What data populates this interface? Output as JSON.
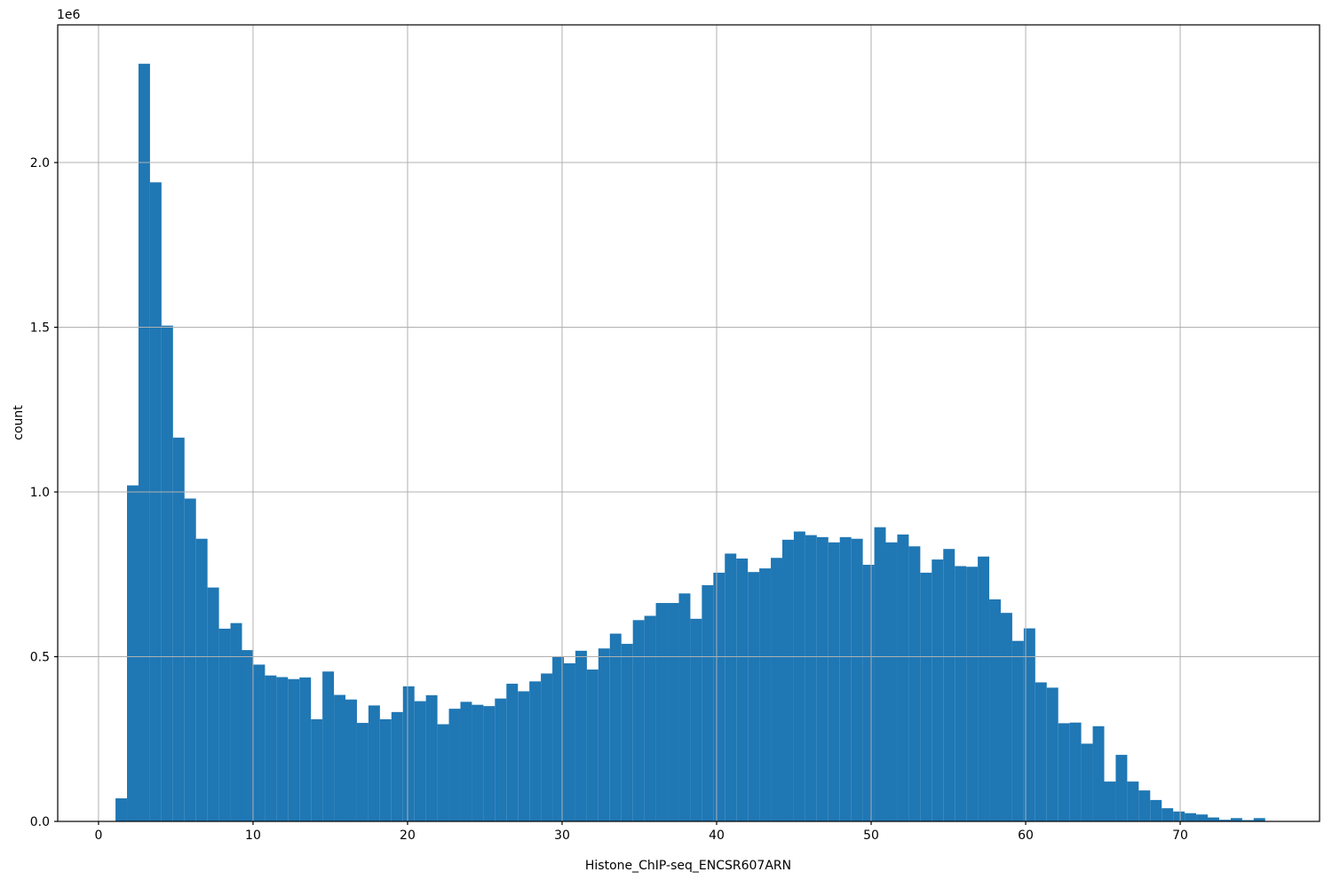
{
  "figure": {
    "background": "#ffffff"
  },
  "chart_data": {
    "type": "bar",
    "subtype": "histogram",
    "title": "",
    "xlabel": "Histone_ChIP-seq_ENCSR607ARN",
    "ylabel": "count",
    "y_offset_text": "1e6",
    "legend": null,
    "grid": true,
    "grid_color": "#b0b0b0",
    "bar_color": "#1f77b4",
    "spine_color": "#000000",
    "bin_start": 1.1,
    "bin_width": 0.744,
    "counts": [
      70000,
      1020000,
      2300000,
      1940000,
      1505000,
      1165000,
      980000,
      858000,
      710000,
      585000,
      602000,
      520000,
      476000,
      443000,
      438000,
      432000,
      437000,
      310000,
      455000,
      384000,
      370000,
      299000,
      352000,
      310000,
      332000,
      410000,
      365000,
      383000,
      295000,
      342000,
      363000,
      354000,
      350000,
      373000,
      418000,
      395000,
      425000,
      449000,
      500000,
      480000,
      518000,
      461000,
      525000,
      570000,
      539000,
      611000,
      624000,
      663000,
      663000,
      692000,
      615000,
      717000,
      755000,
      813000,
      798000,
      757000,
      768000,
      800000,
      855000,
      880000,
      869000,
      863000,
      847000,
      863000,
      858000,
      779000,
      893000,
      847000,
      871000,
      835000,
      755000,
      795000,
      827000,
      775000,
      773000,
      804000,
      674000,
      633000,
      548000,
      586000,
      422000,
      406000,
      298000,
      300000,
      236000,
      289000,
      121000,
      202000,
      121000,
      94000,
      65000,
      40000,
      30000,
      25000,
      21000,
      12000,
      5000,
      10000,
      4000,
      10000
    ],
    "xlim": [
      -2.64,
      79.02
    ],
    "ylim": [
      0,
      2418000
    ],
    "xticks": [
      0,
      10,
      20,
      30,
      40,
      50,
      60,
      70
    ],
    "xtick_labels": [
      "0",
      "10",
      "20",
      "30",
      "40",
      "50",
      "60",
      "70"
    ],
    "yticks": [
      0,
      500000,
      1000000,
      1500000,
      2000000
    ],
    "ytick_labels": [
      "0.0",
      "0.5",
      "1.0",
      "1.5",
      "2.0"
    ]
  }
}
